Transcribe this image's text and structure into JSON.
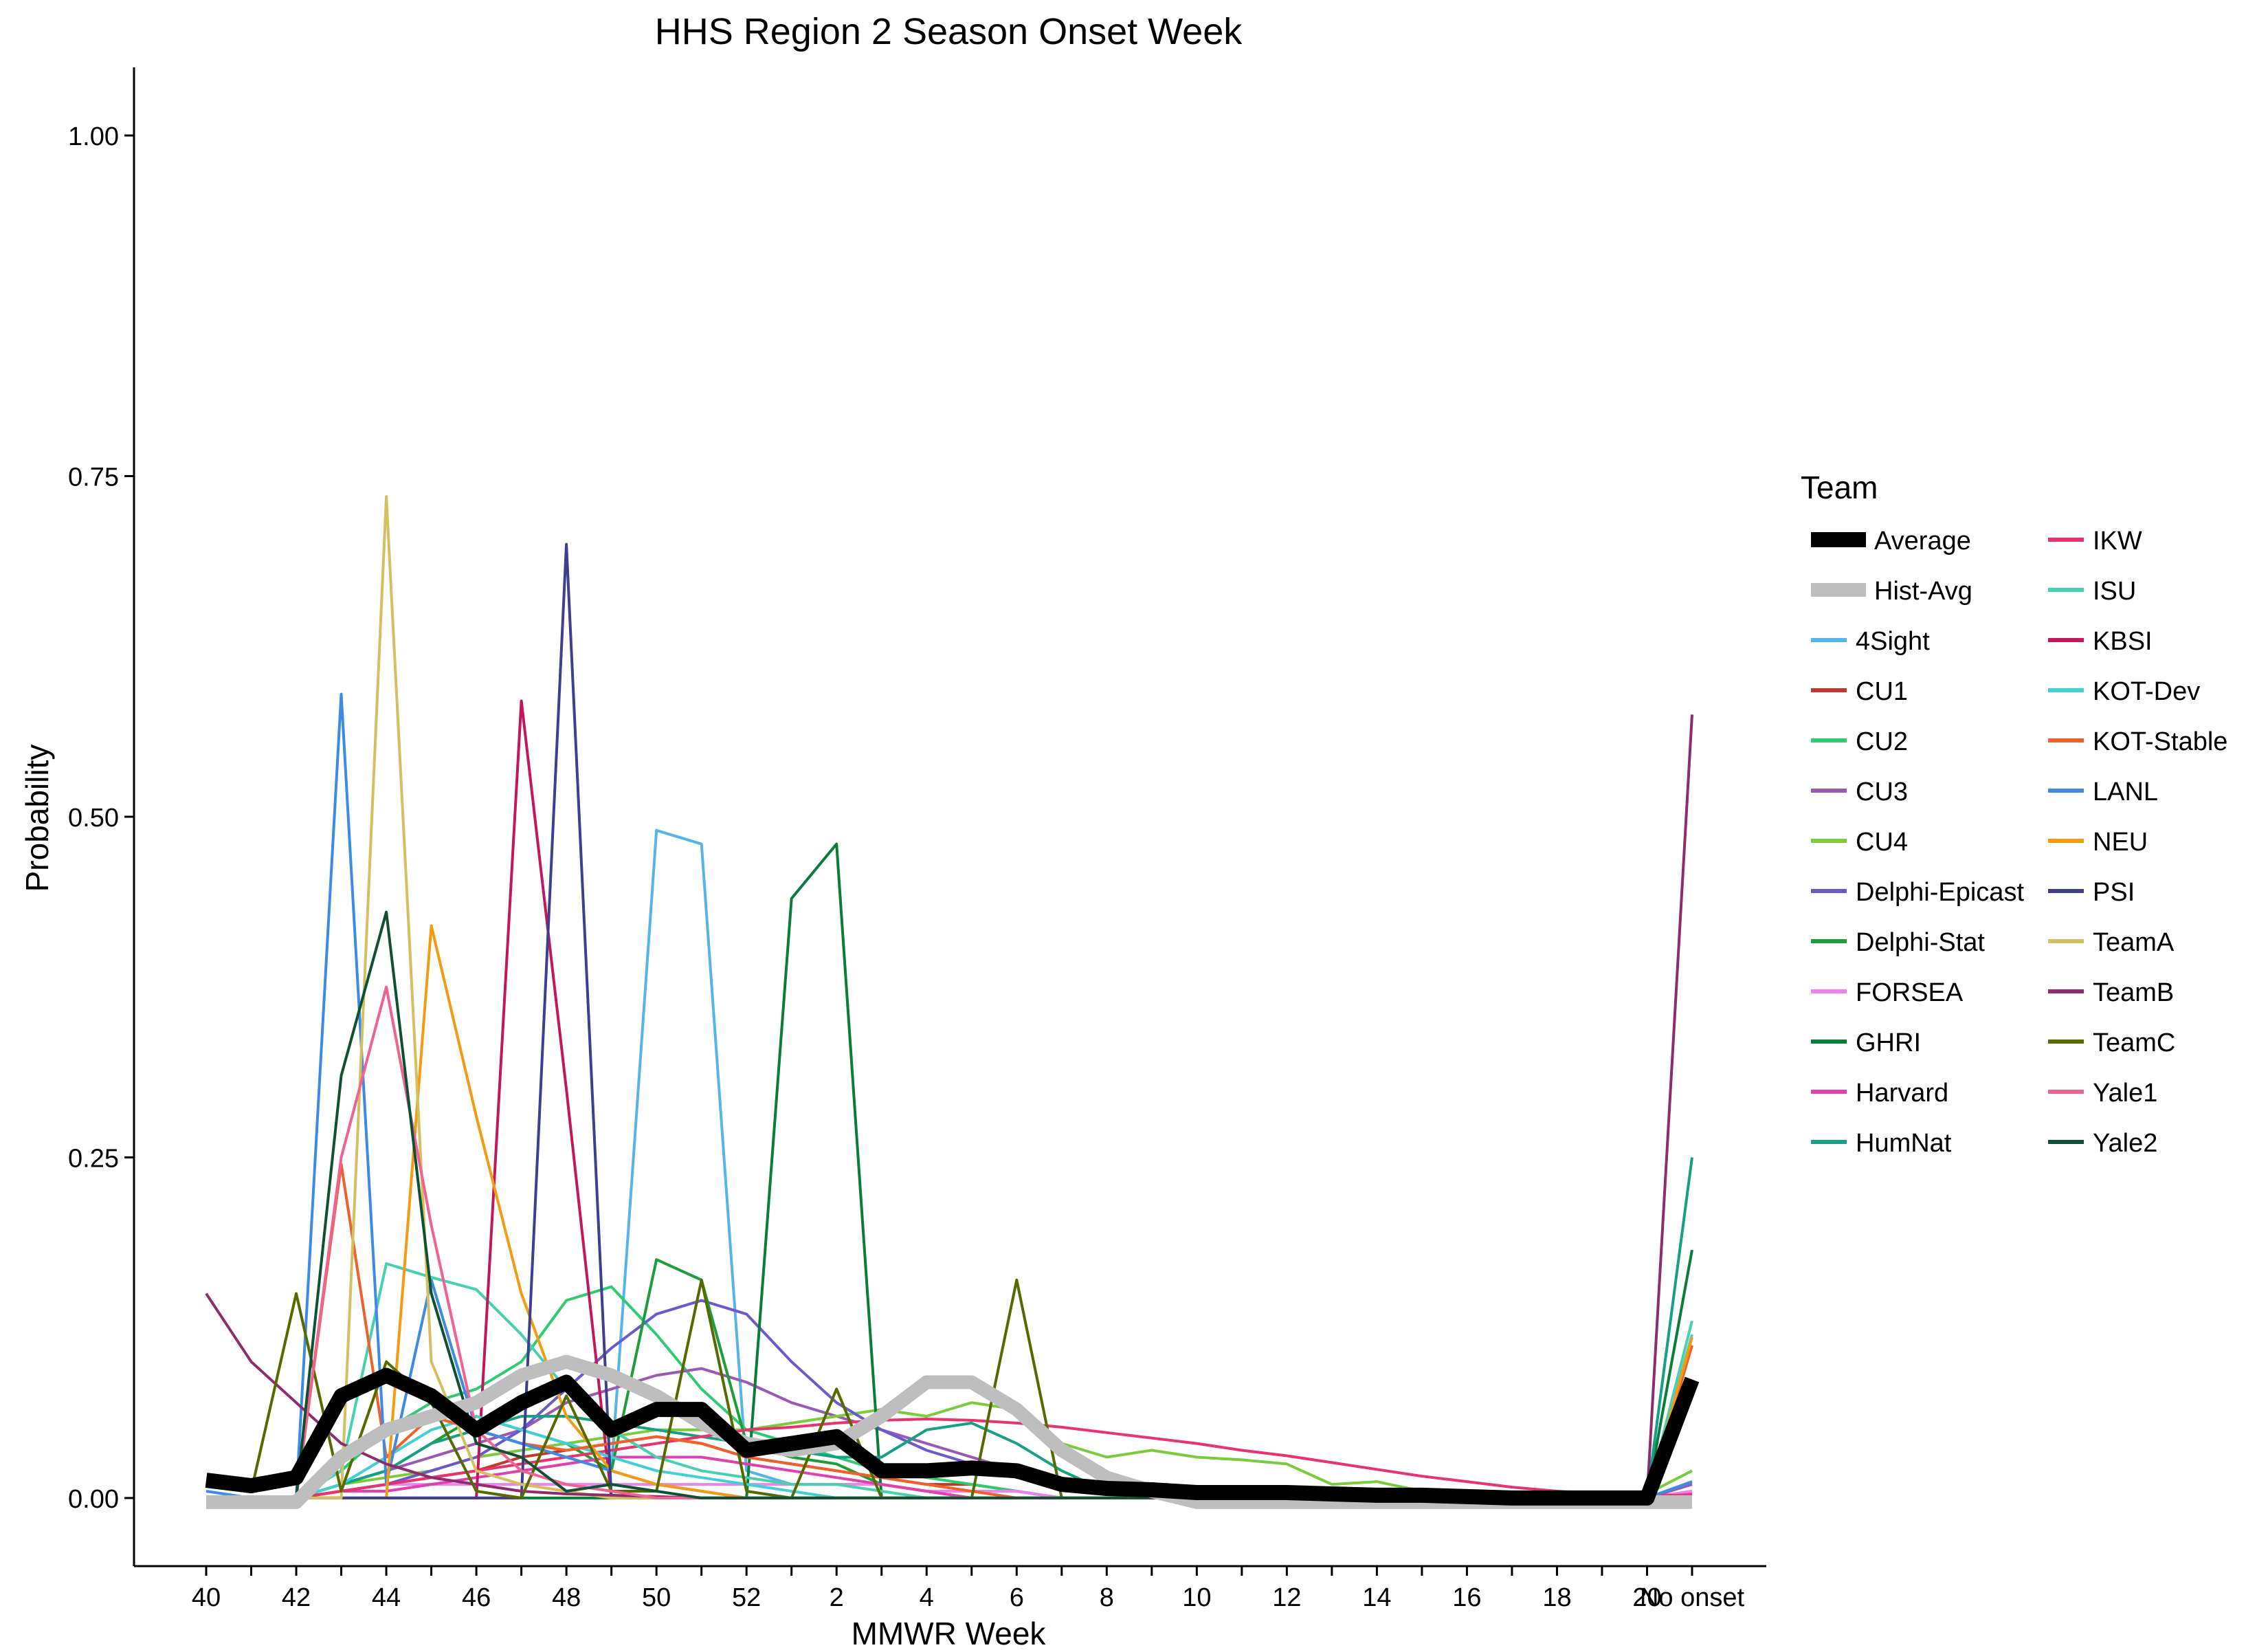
{
  "chart_data": {
    "type": "line",
    "title": "HHS Region 2 Season Onset Week",
    "xlabel": "MMWR Week",
    "ylabel": "Probability",
    "ylim": [
      -0.05,
      1.05
    ],
    "yticks": [
      "0.00",
      "0.25",
      "0.50",
      "0.75",
      "1.00"
    ],
    "xtick_labels": [
      "40",
      "42",
      "44",
      "46",
      "48",
      "50",
      "52",
      "2",
      "4",
      "6",
      "8",
      "10",
      "12",
      "14",
      "16",
      "18",
      "20",
      "No onset"
    ],
    "x": [
      "40",
      "41",
      "42",
      "43",
      "44",
      "45",
      "46",
      "47",
      "48",
      "49",
      "50",
      "51",
      "52",
      "1",
      "2",
      "3",
      "4",
      "5",
      "6",
      "7",
      "8",
      "9",
      "10",
      "11",
      "12",
      "13",
      "14",
      "15",
      "16",
      "17",
      "18",
      "19",
      "20",
      "No onset"
    ],
    "grid": false,
    "legend": {
      "title": "Team",
      "placement": "right",
      "columns": 2
    },
    "series": [
      {
        "name": "Average",
        "color": "#000000",
        "role": "average",
        "values": [
          0.013,
          0.009,
          0.015,
          0.075,
          0.09,
          0.075,
          0.05,
          0.07,
          0.085,
          0.05,
          0.065,
          0.065,
          0.035,
          0.04,
          0.045,
          0.02,
          0.02,
          0.022,
          0.02,
          0.01,
          0.007,
          0.006,
          0.004,
          0.004,
          0.004,
          0.003,
          0.002,
          0.002,
          0.001,
          0.0,
          0.0,
          0.0,
          0.0,
          0.087
        ]
      },
      {
        "name": "Hist-Avg",
        "color": "#BEBEBE",
        "role": "hist",
        "values": [
          -0.003,
          -0.003,
          -0.003,
          0.03,
          0.05,
          0.06,
          0.07,
          0.09,
          0.1,
          0.09,
          0.075,
          0.055,
          0.04,
          0.035,
          0.04,
          0.06,
          0.085,
          0.085,
          0.065,
          0.035,
          0.015,
          0.005,
          -0.003,
          -0.003,
          -0.003,
          -0.003,
          -0.003,
          -0.003,
          -0.003,
          -0.003,
          -0.003,
          -0.003,
          -0.003,
          -0.003
        ]
      },
      {
        "name": "4Sight",
        "color": "#56B4E9",
        "values": [
          0,
          0,
          0,
          0.02,
          0.05,
          0.06,
          0.05,
          0.04,
          0.03,
          0.02,
          0.49,
          0.48,
          0.02,
          0.01,
          0.01,
          0.01,
          0.005,
          0.005,
          0.005,
          0,
          0,
          0,
          0,
          0,
          0,
          0,
          0,
          0,
          0,
          0,
          0,
          0,
          0,
          0
        ]
      },
      {
        "name": "CU1",
        "color": "#C0392B",
        "values": [
          0,
          0,
          0,
          0.005,
          0.01,
          0.015,
          0.02,
          0.03,
          0.035,
          0.04,
          0.045,
          0.04,
          0.03,
          0.025,
          0.02,
          0.015,
          0.01,
          0.01,
          0.005,
          0,
          0,
          0,
          0,
          0,
          0,
          0,
          0,
          0,
          0,
          0,
          0,
          0,
          0,
          0.005
        ]
      },
      {
        "name": "CU2",
        "color": "#2ECC71",
        "values": [
          0,
          0,
          0,
          0.02,
          0.05,
          0.07,
          0.08,
          0.1,
          0.145,
          0.155,
          0.12,
          0.08,
          0.05,
          0.04,
          0.03,
          0.02,
          0.015,
          0.01,
          0.005,
          0,
          0,
          0,
          0,
          0,
          0,
          0,
          0,
          0,
          0,
          0,
          0,
          0,
          0,
          0.01
        ]
      },
      {
        "name": "CU3",
        "color": "#9B59B6",
        "values": [
          0,
          0,
          0,
          0.01,
          0.02,
          0.03,
          0.04,
          0.05,
          0.07,
          0.08,
          0.09,
          0.095,
          0.085,
          0.07,
          0.06,
          0.05,
          0.04,
          0.03,
          0.02,
          0.01,
          0.005,
          0,
          0,
          0,
          0,
          0,
          0,
          0,
          0,
          0,
          0,
          0,
          0,
          0.01
        ]
      },
      {
        "name": "CU4",
        "color": "#7ACC3C",
        "values": [
          0,
          0,
          0,
          0.01,
          0.015,
          0.02,
          0.03,
          0.035,
          0.04,
          0.045,
          0.05,
          0.05,
          0.05,
          0.055,
          0.06,
          0.065,
          0.06,
          0.07,
          0.065,
          0.04,
          0.03,
          0.035,
          0.03,
          0.028,
          0.025,
          0.01,
          0.012,
          0.005,
          0.003,
          0.003,
          0.003,
          0.003,
          0.003,
          0.02
        ]
      },
      {
        "name": "Delphi-Epicast",
        "color": "#6A5ACD",
        "values": [
          0,
          0,
          0,
          0.005,
          0.01,
          0.02,
          0.03,
          0.05,
          0.08,
          0.11,
          0.135,
          0.145,
          0.135,
          0.1,
          0.07,
          0.05,
          0.035,
          0.025,
          0.015,
          0.01,
          0.005,
          0,
          0,
          0,
          0,
          0,
          0,
          0,
          0,
          0,
          0,
          0,
          0,
          0.012
        ]
      },
      {
        "name": "Delphi-Stat",
        "color": "#1E9E3A",
        "values": [
          0,
          0,
          0,
          0.01,
          0.02,
          0.04,
          0.06,
          0.05,
          0.04,
          0.02,
          0.175,
          0.16,
          0.04,
          0.03,
          0.025,
          0.01,
          0.005,
          0,
          0,
          0,
          0,
          0,
          0,
          0,
          0,
          0,
          0,
          0,
          0,
          0,
          0,
          0,
          0,
          0
        ]
      },
      {
        "name": "FORSEA",
        "color": "#EE82EE",
        "values": [
          0,
          0,
          0,
          0.005,
          0.01,
          0.01,
          0.01,
          0.01,
          0.01,
          0.01,
          0.01,
          0.01,
          0.01,
          0.01,
          0.01,
          0.01,
          0.005,
          0.005,
          0.005,
          0,
          0,
          0,
          0,
          0,
          0,
          0,
          0,
          0,
          0,
          0,
          0,
          0,
          0,
          0.005
        ]
      },
      {
        "name": "GHRI",
        "color": "#0A7D3B",
        "values": [
          0,
          0,
          0,
          0,
          0,
          0,
          0,
          0,
          0,
          0,
          0,
          0,
          0,
          0.44,
          0.48,
          0,
          0,
          0,
          0,
          0,
          0,
          0,
          0,
          0,
          0,
          0,
          0,
          0,
          0,
          0,
          0,
          0,
          0,
          0.182
        ]
      },
      {
        "name": "Harvard",
        "color": "#E040B0",
        "values": [
          0,
          0,
          0,
          0.005,
          0.005,
          0.01,
          0.015,
          0.02,
          0.025,
          0.03,
          0.03,
          0.03,
          0.025,
          0.02,
          0.015,
          0.01,
          0.005,
          0,
          0,
          0,
          0,
          0,
          0,
          0,
          0,
          0,
          0,
          0,
          0,
          0,
          0,
          0,
          0,
          0.003
        ]
      },
      {
        "name": "HumNat",
        "color": "#16A085",
        "values": [
          0,
          0,
          0,
          0.01,
          0.02,
          0.04,
          0.05,
          0.06,
          0.06,
          0.055,
          0.05,
          0.045,
          0.04,
          0.035,
          0.03,
          0.03,
          0.05,
          0.055,
          0.04,
          0.02,
          0.005,
          0,
          0,
          0,
          0,
          0,
          0,
          0,
          0,
          0,
          0,
          0,
          0,
          0.25
        ]
      },
      {
        "name": "IKW",
        "color": "#E8336D",
        "values": [
          0,
          0,
          0,
          0.005,
          0.01,
          0.015,
          0.02,
          0.025,
          0.03,
          0.035,
          0.04,
          0.045,
          0.05,
          0.052,
          0.055,
          0.057,
          0.058,
          0.057,
          0.055,
          0.052,
          0.048,
          0.044,
          0.04,
          0.035,
          0.031,
          0.026,
          0.021,
          0.016,
          0.012,
          0.008,
          0.005,
          0.003,
          0.002,
          0.002
        ]
      },
      {
        "name": "ISU",
        "color": "#48D1B0",
        "values": [
          0,
          0,
          0,
          0.02,
          0.172,
          0.162,
          0.153,
          0.12,
          0.08,
          0.05,
          0.03,
          0.02,
          0.015,
          0.01,
          0.01,
          0.005,
          0,
          0,
          0,
          0,
          0,
          0,
          0,
          0,
          0,
          0,
          0,
          0,
          0,
          0,
          0,
          0,
          0,
          0.13
        ]
      },
      {
        "name": "KBSI",
        "color": "#C2185B",
        "values": [
          0,
          0,
          0,
          0,
          0,
          0,
          0,
          0.585,
          0.3,
          0,
          0,
          0,
          0,
          0,
          0,
          0,
          0,
          0,
          0,
          0,
          0,
          0,
          0,
          0,
          0,
          0,
          0,
          0,
          0,
          0,
          0,
          0,
          0,
          0
        ]
      },
      {
        "name": "KOT-Dev",
        "color": "#40D0D8",
        "values": [
          0,
          0,
          0,
          0.01,
          0.03,
          0.05,
          0.06,
          0.05,
          0.04,
          0.03,
          0.02,
          0.015,
          0.01,
          0.005,
          0,
          0,
          0,
          0,
          0,
          0,
          0,
          0,
          0,
          0,
          0,
          0,
          0,
          0,
          0,
          0,
          0,
          0,
          0,
          0.12
        ]
      },
      {
        "name": "KOT-Stable",
        "color": "#F0602A",
        "values": [
          0,
          0,
          0,
          0.245,
          0.03,
          0.06,
          0.05,
          0.04,
          0.035,
          0.04,
          0.045,
          0.04,
          0.03,
          0.025,
          0.02,
          0.015,
          0.01,
          0.005,
          0,
          0,
          0,
          0,
          0,
          0,
          0,
          0,
          0,
          0,
          0,
          0,
          0,
          0,
          0,
          0.112
        ]
      },
      {
        "name": "LANL",
        "color": "#3D8BE6",
        "values": [
          0.005,
          0,
          0,
          0.59,
          0.01,
          0.16,
          0.05,
          0.04,
          0.03,
          0.02,
          0.01,
          0.005,
          0,
          0,
          0,
          0,
          0,
          0,
          0,
          0,
          0,
          0,
          0,
          0,
          0,
          0,
          0,
          0,
          0,
          0,
          0,
          0,
          0,
          0.012
        ]
      },
      {
        "name": "NEU",
        "color": "#F39C12",
        "values": [
          0,
          0,
          0,
          0,
          0,
          0.42,
          0.28,
          0.15,
          0.06,
          0.02,
          0.01,
          0.005,
          0,
          0,
          0,
          0,
          0,
          0,
          0,
          0,
          0,
          0,
          0,
          0,
          0,
          0,
          0,
          0,
          0,
          0,
          0,
          0,
          0,
          0.118
        ]
      },
      {
        "name": "PSI",
        "color": "#3F3F8F",
        "values": [
          0,
          0,
          0,
          0,
          0,
          0,
          0,
          0,
          0.7,
          0,
          0,
          0,
          0,
          0,
          0,
          0,
          0,
          0,
          0,
          0,
          0,
          0,
          0,
          0,
          0,
          0,
          0,
          0,
          0,
          0,
          0,
          0,
          0,
          0
        ]
      },
      {
        "name": "TeamA",
        "color": "#D4C060",
        "values": [
          0,
          0,
          0,
          0,
          0.735,
          0.1,
          0.02,
          0.01,
          0.005,
          0,
          0,
          0,
          0,
          0,
          0,
          0,
          0,
          0,
          0,
          0,
          0,
          0,
          0,
          0,
          0,
          0,
          0,
          0,
          0,
          0,
          0,
          0,
          0,
          0
        ]
      },
      {
        "name": "TeamB",
        "color": "#8E2C6E",
        "values": [
          0.15,
          0.1,
          0.07,
          0.04,
          0.025,
          0.015,
          0.01,
          0.005,
          0.003,
          0.002,
          0.001,
          0,
          0,
          0,
          0,
          0,
          0,
          0,
          0,
          0,
          0,
          0,
          0,
          0,
          0,
          0,
          0,
          0,
          0,
          0,
          0,
          0,
          0,
          0.575
        ]
      },
      {
        "name": "TeamC",
        "color": "#556B00",
        "values": [
          0.01,
          0.005,
          0.15,
          0.005,
          0.1,
          0.07,
          0.005,
          0,
          0.075,
          0.005,
          0.005,
          0.16,
          0.005,
          0,
          0.08,
          0,
          0,
          0,
          0.16,
          0,
          0,
          0,
          0,
          0,
          0,
          0,
          0,
          0,
          0,
          0,
          0,
          0,
          0,
          0
        ]
      },
      {
        "name": "Yale1",
        "color": "#F06292",
        "values": [
          0,
          0,
          0,
          0.25,
          0.375,
          0.2,
          0.05,
          0.02,
          0.01,
          0.005,
          0,
          0,
          0,
          0,
          0,
          0,
          0,
          0,
          0,
          0,
          0,
          0,
          0,
          0,
          0,
          0,
          0,
          0,
          0,
          0,
          0,
          0,
          0,
          0
        ]
      },
      {
        "name": "Yale2",
        "color": "#0F5132",
        "values": [
          0,
          0,
          0,
          0.31,
          0.43,
          0.15,
          0.04,
          0.03,
          0.005,
          0.01,
          0.005,
          0,
          0,
          0,
          0,
          0,
          0,
          0,
          0,
          0,
          0,
          0,
          0,
          0,
          0,
          0,
          0,
          0,
          0,
          0,
          0,
          0,
          0,
          0
        ]
      }
    ]
  }
}
